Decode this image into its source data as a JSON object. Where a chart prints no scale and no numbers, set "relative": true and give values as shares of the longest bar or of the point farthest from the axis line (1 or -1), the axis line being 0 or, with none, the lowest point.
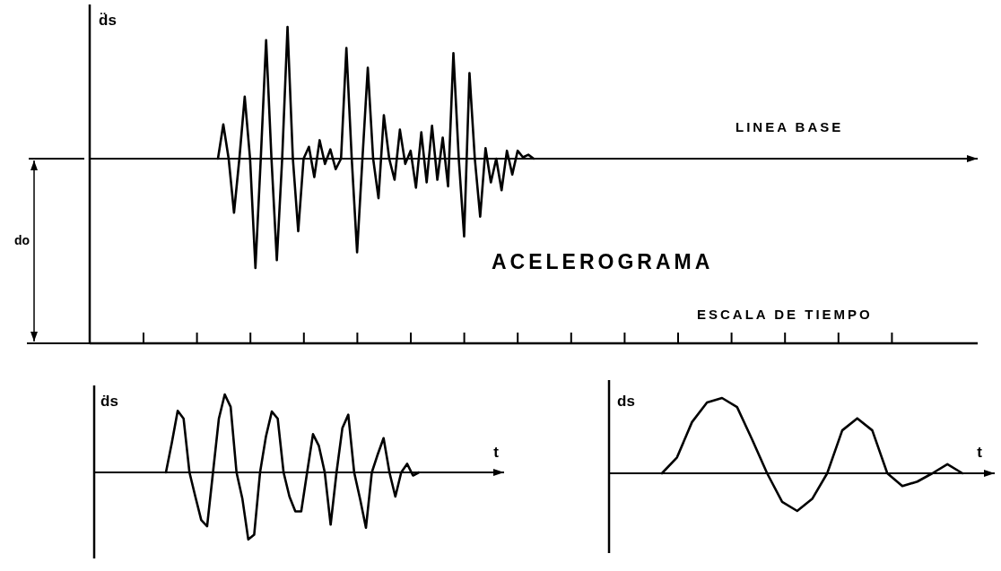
{
  "chart_data": [
    {
      "type": "line",
      "relative": true,
      "ylabel": "d̈s",
      "annotations": [
        "LINEA BASE",
        "ACELEROGRAMA",
        "ESCALA DE TIEMPO",
        "do"
      ],
      "categories": [
        null,
        null,
        null,
        null,
        null,
        null,
        null,
        null,
        null,
        null,
        null,
        null,
        null,
        null,
        null,
        null,
        null,
        null,
        null,
        null,
        null,
        null,
        null,
        null,
        null,
        null,
        null,
        null,
        null,
        null,
        null,
        null,
        null,
        null,
        null,
        null,
        null,
        null,
        null,
        null,
        null,
        null,
        null,
        null,
        null,
        null,
        null,
        null,
        null,
        null,
        null,
        null,
        null,
        null,
        null,
        null,
        null,
        null,
        null,
        null
      ],
      "series": [
        {
          "color": "#000000",
          "values": [
            0,
            0.26,
            0,
            -0.41,
            0,
            0.47,
            0,
            -0.83,
            0,
            0.9,
            0,
            -0.77,
            0,
            1.0,
            0,
            -0.55,
            0,
            0.09,
            -0.14,
            0.14,
            -0.04,
            0.07,
            -0.08,
            0,
            0.84,
            0,
            -0.71,
            0,
            0.69,
            0,
            -0.3,
            0.33,
            0,
            -0.16,
            0.22,
            -0.04,
            0.06,
            -0.22,
            0.2,
            -0.18,
            0.25,
            -0.16,
            0.16,
            -0.21,
            0.8,
            0,
            -0.59,
            0.65,
            0,
            -0.44,
            0.08,
            -0.18,
            0,
            -0.24,
            0.06,
            -0.12,
            0.06,
            0.01,
            0.03,
            0
          ]
        }
      ]
    },
    {
      "type": "line",
      "relative": true,
      "ylabel": "ḋs",
      "xlabel": "t",
      "categories": [
        null,
        null,
        null,
        null,
        null,
        null,
        null,
        null,
        null,
        null,
        null,
        null,
        null,
        null,
        null,
        null,
        null,
        null,
        null,
        null,
        null,
        null,
        null,
        null,
        null,
        null,
        null,
        null,
        null,
        null,
        null,
        null,
        null,
        null,
        null,
        null,
        null,
        null,
        null,
        null,
        null,
        null,
        null,
        null
      ],
      "series": [
        {
          "color": "#000000",
          "values": [
            0,
            0.38,
            0.79,
            0.69,
            0,
            -0.31,
            -0.61,
            -0.69,
            0,
            0.69,
            1.0,
            0.84,
            0,
            -0.34,
            -0.86,
            -0.8,
            0,
            0.46,
            0.78,
            0.69,
            0,
            -0.31,
            -0.5,
            -0.5,
            0,
            0.49,
            0.34,
            0,
            -0.67,
            0,
            0.57,
            0.74,
            0,
            -0.34,
            -0.71,
            0,
            0.23,
            0.44,
            0,
            -0.31,
            0,
            0.11,
            -0.04,
            0
          ]
        }
      ]
    },
    {
      "type": "line",
      "relative": true,
      "ylabel": "ds",
      "xlabel": "t",
      "categories": [
        null,
        null,
        null,
        null,
        null,
        null,
        null,
        null,
        null,
        null,
        null,
        null,
        null,
        null,
        null,
        null,
        null,
        null,
        null,
        null,
        null
      ],
      "series": [
        {
          "color": "#000000",
          "values": [
            0,
            0.21,
            0.68,
            0.94,
            1.0,
            0.88,
            0.45,
            0,
            -0.38,
            -0.5,
            -0.34,
            0,
            0.57,
            0.73,
            0.57,
            0,
            -0.17,
            -0.11,
            0,
            0.12,
            0
          ]
        }
      ]
    }
  ]
}
